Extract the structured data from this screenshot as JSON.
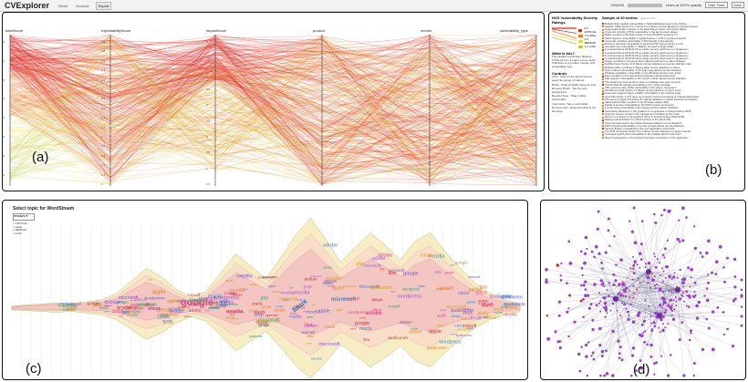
{
  "app": {
    "title": "CVExplorer",
    "buttons": [
      "Reset",
      "Exclude",
      "Export"
    ],
    "active_button": "Export",
    "lines_count": "493/493",
    "lines_text": "Lines at 100% opacity",
    "hide_ticks": "Hide Ticks",
    "dark": "Dark"
  },
  "parallel": {
    "label": "(a)",
    "axes": [
      {
        "name": "baseScore",
        "ticks": [
          "9.5",
          "9",
          "8.5",
          "8",
          "7.5",
          "7",
          "6.5",
          "6",
          "5.5",
          "5",
          "4.5",
          "4",
          "3.5",
          "3",
          "2.5",
          "2"
        ]
      },
      {
        "name": "exploitabilityScore",
        "ticks": [
          "3.9",
          "3.8",
          "3.6",
          "3.4",
          "3.2",
          "3",
          "2.8",
          "2.6",
          "2.4",
          "2.2",
          "2",
          "1.8",
          "1.6",
          "1.4",
          "1.2",
          "1"
        ]
      },
      {
        "name": "impactScore",
        "ticks": [
          "6",
          "5.5",
          "5",
          "4.5",
          "4",
          "3.5",
          "3",
          "2.5",
          "2",
          "1.5"
        ]
      },
      {
        "name": "product",
        "ticks": []
      },
      {
        "name": "vendor",
        "ticks": []
      },
      {
        "name": "vulnerability_type",
        "ticks": []
      }
    ]
  },
  "side": {
    "label": "(b)",
    "legend_title": "NVD Vulnerability Severity Ratings",
    "legend": [
      {
        "label": "9.0 CRITICAL",
        "color": "#e3271f"
      },
      {
        "label": "7.0 HIGH",
        "color": "#f07a2a"
      },
      {
        "label": "4.0 MEDIUM",
        "color": "#f3d244"
      },
      {
        "label": "0.1 LOW",
        "color": "#b6cc3a"
      }
    ],
    "what_title": "What is this?",
    "what_text": "The parallel coordinates displays CVSS v3.0 on 3 major scores. Each CVE links to a product, vendor, and vulnerability type.",
    "controls_title": "Controls",
    "controls": [
      "Click - Click on the above lines to select the group of interest.",
      "Brush - Drag vertically along an axis.",
      "Remove Brush - Tap the axis background.",
      "Reorder Axes - Drag a label horizontally.",
      "Invert Axis - Tap on axis label.",
      "Remove Axis - Drag axis label to the left edge."
    ],
    "sample_title": "Sample of 40 entries",
    "sample_sub": "Export CSV...",
    "sample_items": [
      "Multiple SQL injection vulnerability in SQLiteDatabase.java in the SQLite",
      "Apache Traffic Server 5.1.x before 5.1.1 allows remote attackers to bypass access",
      "Heap-based buffer overflow in the Flash Player before 13.0.0.231 allows",
      "Cross-site scripting (XSS) vulnerability in the admin panel allows",
      "Buffer overflow in the Ruby binary in Intel PCI-BIOS systems 1.0",
      "CRLF injection vulnerability in lighttpd before 1.4.35 in pending requests",
      "Cross-site scripting vulnerability in lib/mail.php in Roundcube",
      "Directory traversal vulnerability in Apache HTTP Server before 2.4.10",
      "Use-after-free vulnerability in WebKit, as used in Apple Safari",
      "In Android before 2018-04-05 an earlier security patch level on Qualcomm",
      "In Android before 2018-04-05 an earlier security patch level on Qualcomm",
      "In Android before 2018-04-05 an earlier security patch level on Qualcomm",
      "In Android before 2018-04-05 an earlier security patch level on Qualcomm",
      "Integer overflow in the kernel driver allows local users to gain privileges",
      "Mozilla Firefox before 31.0 allows remote attackers to execute arbitrary code",
      "Multiple buffer overflows in libjpeg allow remote attackers to cause",
      "Open redirect vulnerability in the login page allows remote attackers",
      "Privilege escalation vulnerability in the Windows kernel mode driver",
      "Race condition in the networking subsystem allows local users",
      "SQL injection vulnerability in the search module allows remote attackers",
      "The Qualcomm camera driver does not validate user input properly",
      "Unrestricted file upload vulnerability in the media manager",
      "XML external entity (XXE) vulnerability in the parser component",
      "WordPress plugin before 2.1 allows remote attackers to inject script",
      "Cross-site request forgery (CSRF) vulnerability in the settings page",
      "OpenSSL before 1.0.1h does not properly restrict processing of ChangeCipherSpec",
      "The kernel in Apple iOS before 8.1 allows attackers to obtain sensitive information",
      "Stack-based buffer overflow in the firmware update utility",
      "Denial of service vulnerability in the DNS resolver component",
      "Format string vulnerability in the logging function allows attackers",
      "Information disclosure in the Qualcomm components in Android before 2018",
      "Improper access control in the management interface of the router",
      "Memory corruption in the graphics driver in Android before 2018-04-05",
      "Missing authentication for critical function in the admin API",
      "Out-of-bounds read in the media framework allows remote attackers",
      "Path traversal vulnerability in the web console allows remote attackers",
      "Session fixation vulnerability in the web application framework",
      "The PHP component before 5.6.3 allows remote attackers to cause a denial",
      "Untrusted search path vulnerability in the installer allows local users",
      "Weak cryptography in the password storage mechanism of the application"
    ]
  },
  "wordstream": {
    "label": "(c)",
    "title": "Select topic for WordStream",
    "select_value": "vendors",
    "legend": [
      "CRITICAL",
      "HIGH",
      "MEDIUM",
      "LOW"
    ],
    "words": [
      "google",
      "linux",
      "microsoft",
      "adobe",
      "apple",
      "oracle",
      "mozilla",
      "cisco",
      "ibm",
      "wordpress",
      "debian",
      "novell",
      "php",
      "openssl",
      "qualcomm"
    ]
  },
  "network": {
    "label": "(d)"
  },
  "colors": {
    "critical": "#e3271f",
    "high": "#f07a2a",
    "medium": "#f3d244",
    "low": "#b6cc3a",
    "node": "#9b3fd0",
    "stream_pink": "#f4c6c2",
    "stream_cream": "#f6edc5"
  }
}
